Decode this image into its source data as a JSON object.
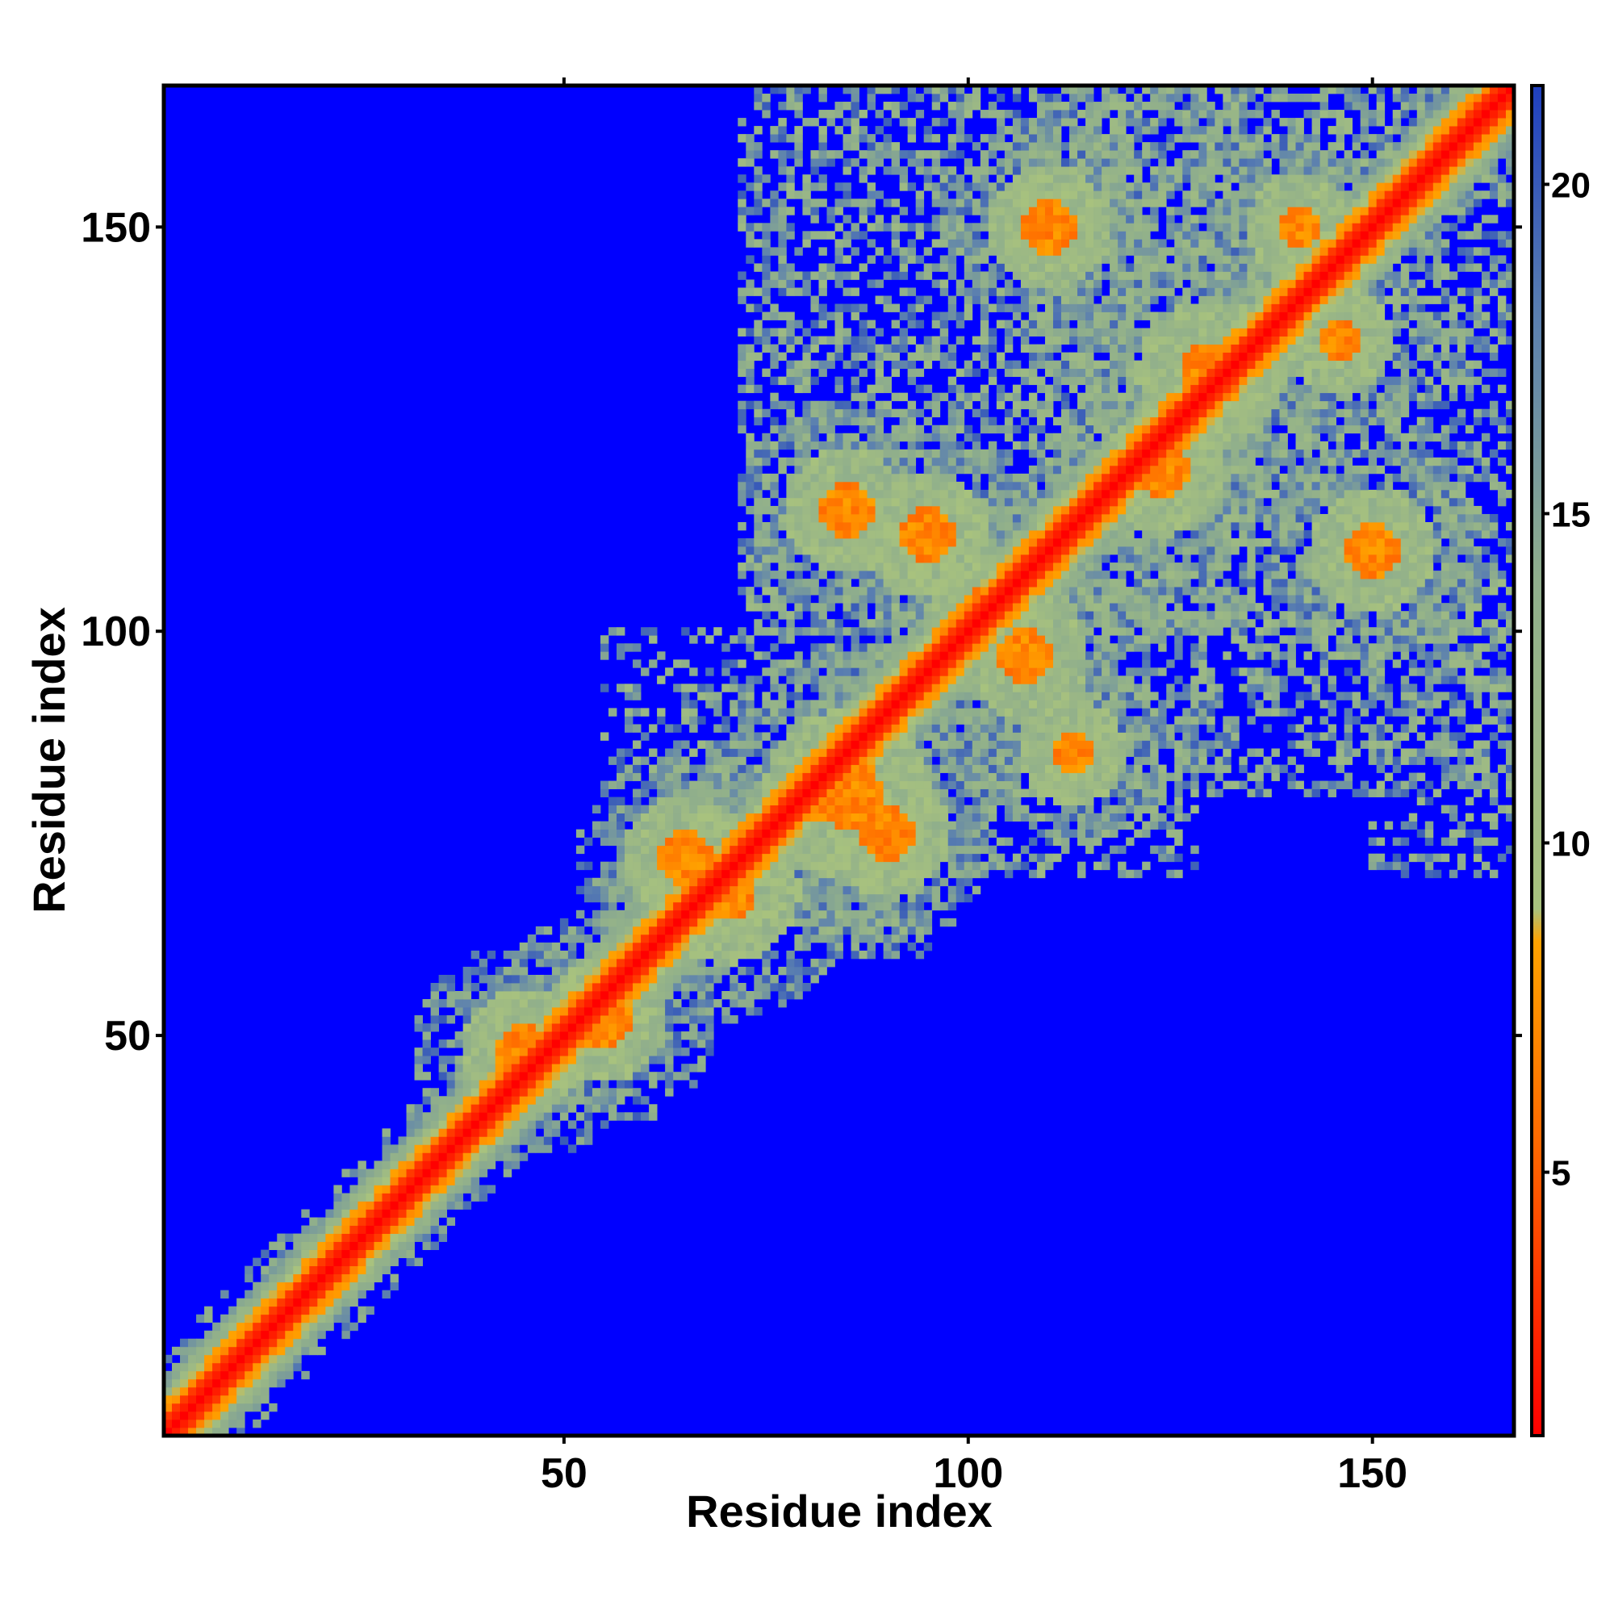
{
  "chart_data": {
    "type": "heatmap",
    "title": "",
    "xlabel": "Residue index",
    "ylabel": "Residue index",
    "n_residues": 167,
    "xlim": [
      1,
      167
    ],
    "ylim": [
      1,
      167
    ],
    "x_ticks": [
      50,
      100,
      150
    ],
    "y_ticks": [
      50,
      100,
      150
    ],
    "colorbar": {
      "ticks": [
        5,
        10,
        15,
        20
      ],
      "range": [
        1,
        21.5
      ],
      "stops": [
        {
          "value": 1,
          "color": "#ff0000"
        },
        {
          "value": 5.5,
          "color": "#ff6a00"
        },
        {
          "value": 8.5,
          "color": "#ffa200"
        },
        {
          "value": 9,
          "color": "#a8c27e"
        },
        {
          "value": 14,
          "color": "#8fae8c"
        },
        {
          "value": 18,
          "color": "#5a7fb0"
        },
        {
          "value": 21.5,
          "color": "#1f3fbf"
        }
      ],
      "saturate_color": "#0000ff"
    },
    "background_value": 21.5,
    "cutoff": 20,
    "diagonal_band": {
      "core_width": 2,
      "orange_width": 4,
      "green_width": 7
    },
    "contact_clusters": [
      {
        "center": [
          45,
          48
        ],
        "spread": 6,
        "intensity": 0.8
      },
      {
        "center": [
          55,
          52
        ],
        "spread": 6,
        "intensity": 0.8
      },
      {
        "center": [
          70,
          68
        ],
        "spread": 7,
        "intensity": 0.85
      },
      {
        "center": [
          65,
          72
        ],
        "spread": 6,
        "intensity": 0.7
      },
      {
        "center": [
          85,
          80
        ],
        "spread": 8,
        "intensity": 0.9
      },
      {
        "center": [
          90,
          75
        ],
        "spread": 6,
        "intensity": 0.7
      },
      {
        "center": [
          85,
          115
        ],
        "spread": 6,
        "intensity": 0.8
      },
      {
        "center": [
          95,
          112
        ],
        "spread": 6,
        "intensity": 0.9
      },
      {
        "center": [
          107,
          97
        ],
        "spread": 6,
        "intensity": 0.9
      },
      {
        "center": [
          113,
          85
        ],
        "spread": 5,
        "intensity": 0.85
      },
      {
        "center": [
          110,
          150
        ],
        "spread": 6,
        "intensity": 0.85
      },
      {
        "center": [
          130,
          132
        ],
        "spread": 7,
        "intensity": 0.8
      },
      {
        "center": [
          141,
          150
        ],
        "spread": 5,
        "intensity": 0.9
      },
      {
        "center": [
          146,
          136
        ],
        "spread": 5,
        "intensity": 0.9
      },
      {
        "center": [
          150,
          110
        ],
        "spread": 6,
        "intensity": 0.9
      },
      {
        "center": [
          124,
          120
        ],
        "spread": 6,
        "intensity": 0.8
      },
      {
        "center": [
          102,
          103
        ],
        "spread": 5,
        "intensity": 0.9
      }
    ],
    "diffuse_regions": [
      {
        "x": [
          108,
          167
        ],
        "y": [
          100,
          167
        ],
        "density": 0.55
      },
      {
        "x": [
          72,
          135
        ],
        "y": [
          100,
          167
        ],
        "density": 0.5
      },
      {
        "x": [
          100,
          167
        ],
        "y": [
          80,
          105
        ],
        "density": 0.45
      },
      {
        "x": [
          55,
          100
        ],
        "y": [
          80,
          100
        ],
        "density": 0.35
      },
      {
        "x": [
          80,
          95
        ],
        "y": [
          60,
          85
        ],
        "density": 0.45
      },
      {
        "x": [
          100,
          128
        ],
        "y": [
          70,
          90
        ],
        "density": 0.35
      },
      {
        "x": [
          150,
          167
        ],
        "y": [
          70,
          100
        ],
        "density": 0.35
      }
    ]
  }
}
